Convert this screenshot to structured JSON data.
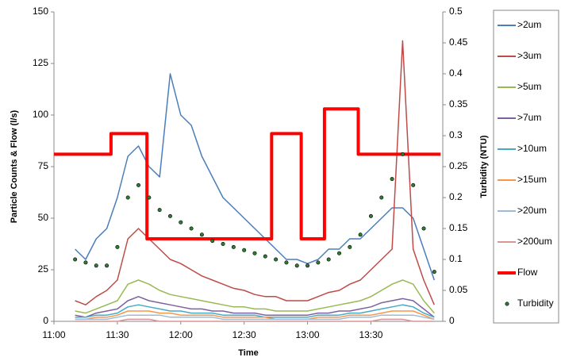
{
  "chart_data": {
    "type": "line",
    "x_label": "Time",
    "y_label": "Particle Counts & Flow (l/s)",
    "y2_label": "Turbidity (NTU)",
    "xlim": [
      660,
      844
    ],
    "xticks": [
      {
        "value": 660,
        "label": "11:00"
      },
      {
        "value": 690,
        "label": "11:30"
      },
      {
        "value": 720,
        "label": "12:00"
      },
      {
        "value": 750,
        "label": "12:30"
      },
      {
        "value": 780,
        "label": "13:00"
      },
      {
        "value": 810,
        "label": "13:30"
      }
    ],
    "ylim": [
      0,
      150
    ],
    "yticks": [
      0,
      25,
      50,
      75,
      100,
      125,
      150
    ],
    "y2lim": [
      0,
      0.5
    ],
    "y2ticks": [
      0,
      0.05,
      0.1,
      0.15,
      0.2,
      0.25,
      0.3,
      0.35,
      0.4,
      0.45,
      0.5
    ],
    "x": [
      670,
      675,
      680,
      685,
      690,
      695,
      700,
      705,
      710,
      715,
      720,
      725,
      730,
      735,
      740,
      745,
      750,
      755,
      760,
      765,
      770,
      775,
      780,
      785,
      790,
      795,
      800,
      805,
      810,
      815,
      820,
      825,
      830,
      835,
      840
    ],
    "series": [
      {
        "name": ">2um",
        "color": "#4a7ebb",
        "values": [
          35,
          30,
          40,
          45,
          60,
          80,
          85,
          75,
          70,
          120,
          100,
          95,
          80,
          70,
          60,
          55,
          50,
          45,
          40,
          35,
          30,
          30,
          28,
          30,
          35,
          35,
          40,
          40,
          45,
          50,
          55,
          55,
          50,
          35,
          20
        ]
      },
      {
        "name": ">3um",
        "color": "#be4b48",
        "values": [
          10,
          8,
          12,
          15,
          20,
          40,
          45,
          40,
          35,
          30,
          28,
          25,
          22,
          20,
          18,
          16,
          15,
          13,
          12,
          12,
          10,
          10,
          10,
          12,
          14,
          15,
          18,
          20,
          25,
          30,
          35,
          136,
          35,
          20,
          8
        ]
      },
      {
        "name": ">5um",
        "color": "#98b954",
        "values": [
          5,
          4,
          6,
          8,
          10,
          18,
          20,
          18,
          15,
          13,
          12,
          11,
          10,
          9,
          8,
          7,
          7,
          6,
          6,
          5,
          5,
          5,
          5,
          6,
          7,
          8,
          9,
          10,
          12,
          15,
          18,
          20,
          18,
          10,
          4
        ]
      },
      {
        "name": ">7um",
        "color": "#7d60a0",
        "values": [
          3,
          2,
          4,
          5,
          6,
          10,
          12,
          10,
          9,
          8,
          7,
          6,
          6,
          5,
          5,
          4,
          4,
          4,
          3,
          3,
          3,
          3,
          3,
          4,
          4,
          5,
          5,
          6,
          7,
          9,
          10,
          11,
          10,
          6,
          2
        ]
      },
      {
        "name": ">10um",
        "color": "#46aac5",
        "values": [
          2,
          2,
          3,
          3,
          4,
          7,
          8,
          7,
          6,
          5,
          5,
          4,
          4,
          4,
          3,
          3,
          3,
          3,
          2,
          2,
          2,
          2,
          2,
          3,
          3,
          3,
          4,
          4,
          5,
          6,
          7,
          8,
          7,
          4,
          2
        ]
      },
      {
        "name": ">15um",
        "color": "#f79646",
        "values": [
          1,
          1,
          2,
          2,
          3,
          5,
          5,
          5,
          4,
          4,
          3,
          3,
          3,
          3,
          2,
          2,
          2,
          2,
          2,
          1,
          1,
          1,
          1,
          2,
          2,
          2,
          3,
          3,
          3,
          4,
          5,
          5,
          5,
          3,
          1
        ]
      },
      {
        "name": ">20um",
        "color": "#9bbbd9",
        "values": [
          1,
          1,
          1,
          1,
          2,
          3,
          3,
          3,
          3,
          2,
          2,
          2,
          2,
          2,
          1,
          1,
          1,
          1,
          1,
          1,
          1,
          1,
          1,
          1,
          1,
          1,
          2,
          2,
          2,
          3,
          3,
          3,
          3,
          2,
          1
        ]
      },
      {
        "name": ">200um",
        "color": "#d99694",
        "values": [
          0,
          0,
          0,
          0,
          0,
          1,
          1,
          1,
          0,
          0,
          0,
          0,
          0,
          0,
          0,
          0,
          0,
          0,
          0,
          0,
          0,
          0,
          0,
          0,
          0,
          0,
          0,
          0,
          0,
          1,
          1,
          1,
          0,
          0,
          0
        ]
      },
      {
        "name": "Flow",
        "color": "#ff0000",
        "x": [
          660,
          687,
          687,
          704,
          704,
          763,
          763,
          777,
          777,
          788,
          788,
          804,
          804,
          843
        ],
        "values": [
          81,
          81,
          91,
          91,
          40,
          40,
          91,
          91,
          40,
          40,
          103,
          103,
          81,
          81
        ]
      },
      {
        "name": "Turbidity",
        "type": "scatter",
        "axis": "y2",
        "color": "#2e7d32",
        "values": [
          0.1,
          0.095,
          0.09,
          0.09,
          0.12,
          0.2,
          0.22,
          0.2,
          0.18,
          0.17,
          0.16,
          0.15,
          0.14,
          0.13,
          0.125,
          0.12,
          0.115,
          0.11,
          0.105,
          0.1,
          0.095,
          0.09,
          0.09,
          0.095,
          0.1,
          0.11,
          0.12,
          0.14,
          0.17,
          0.2,
          0.23,
          0.27,
          0.22,
          0.15,
          0.08
        ]
      }
    ]
  }
}
